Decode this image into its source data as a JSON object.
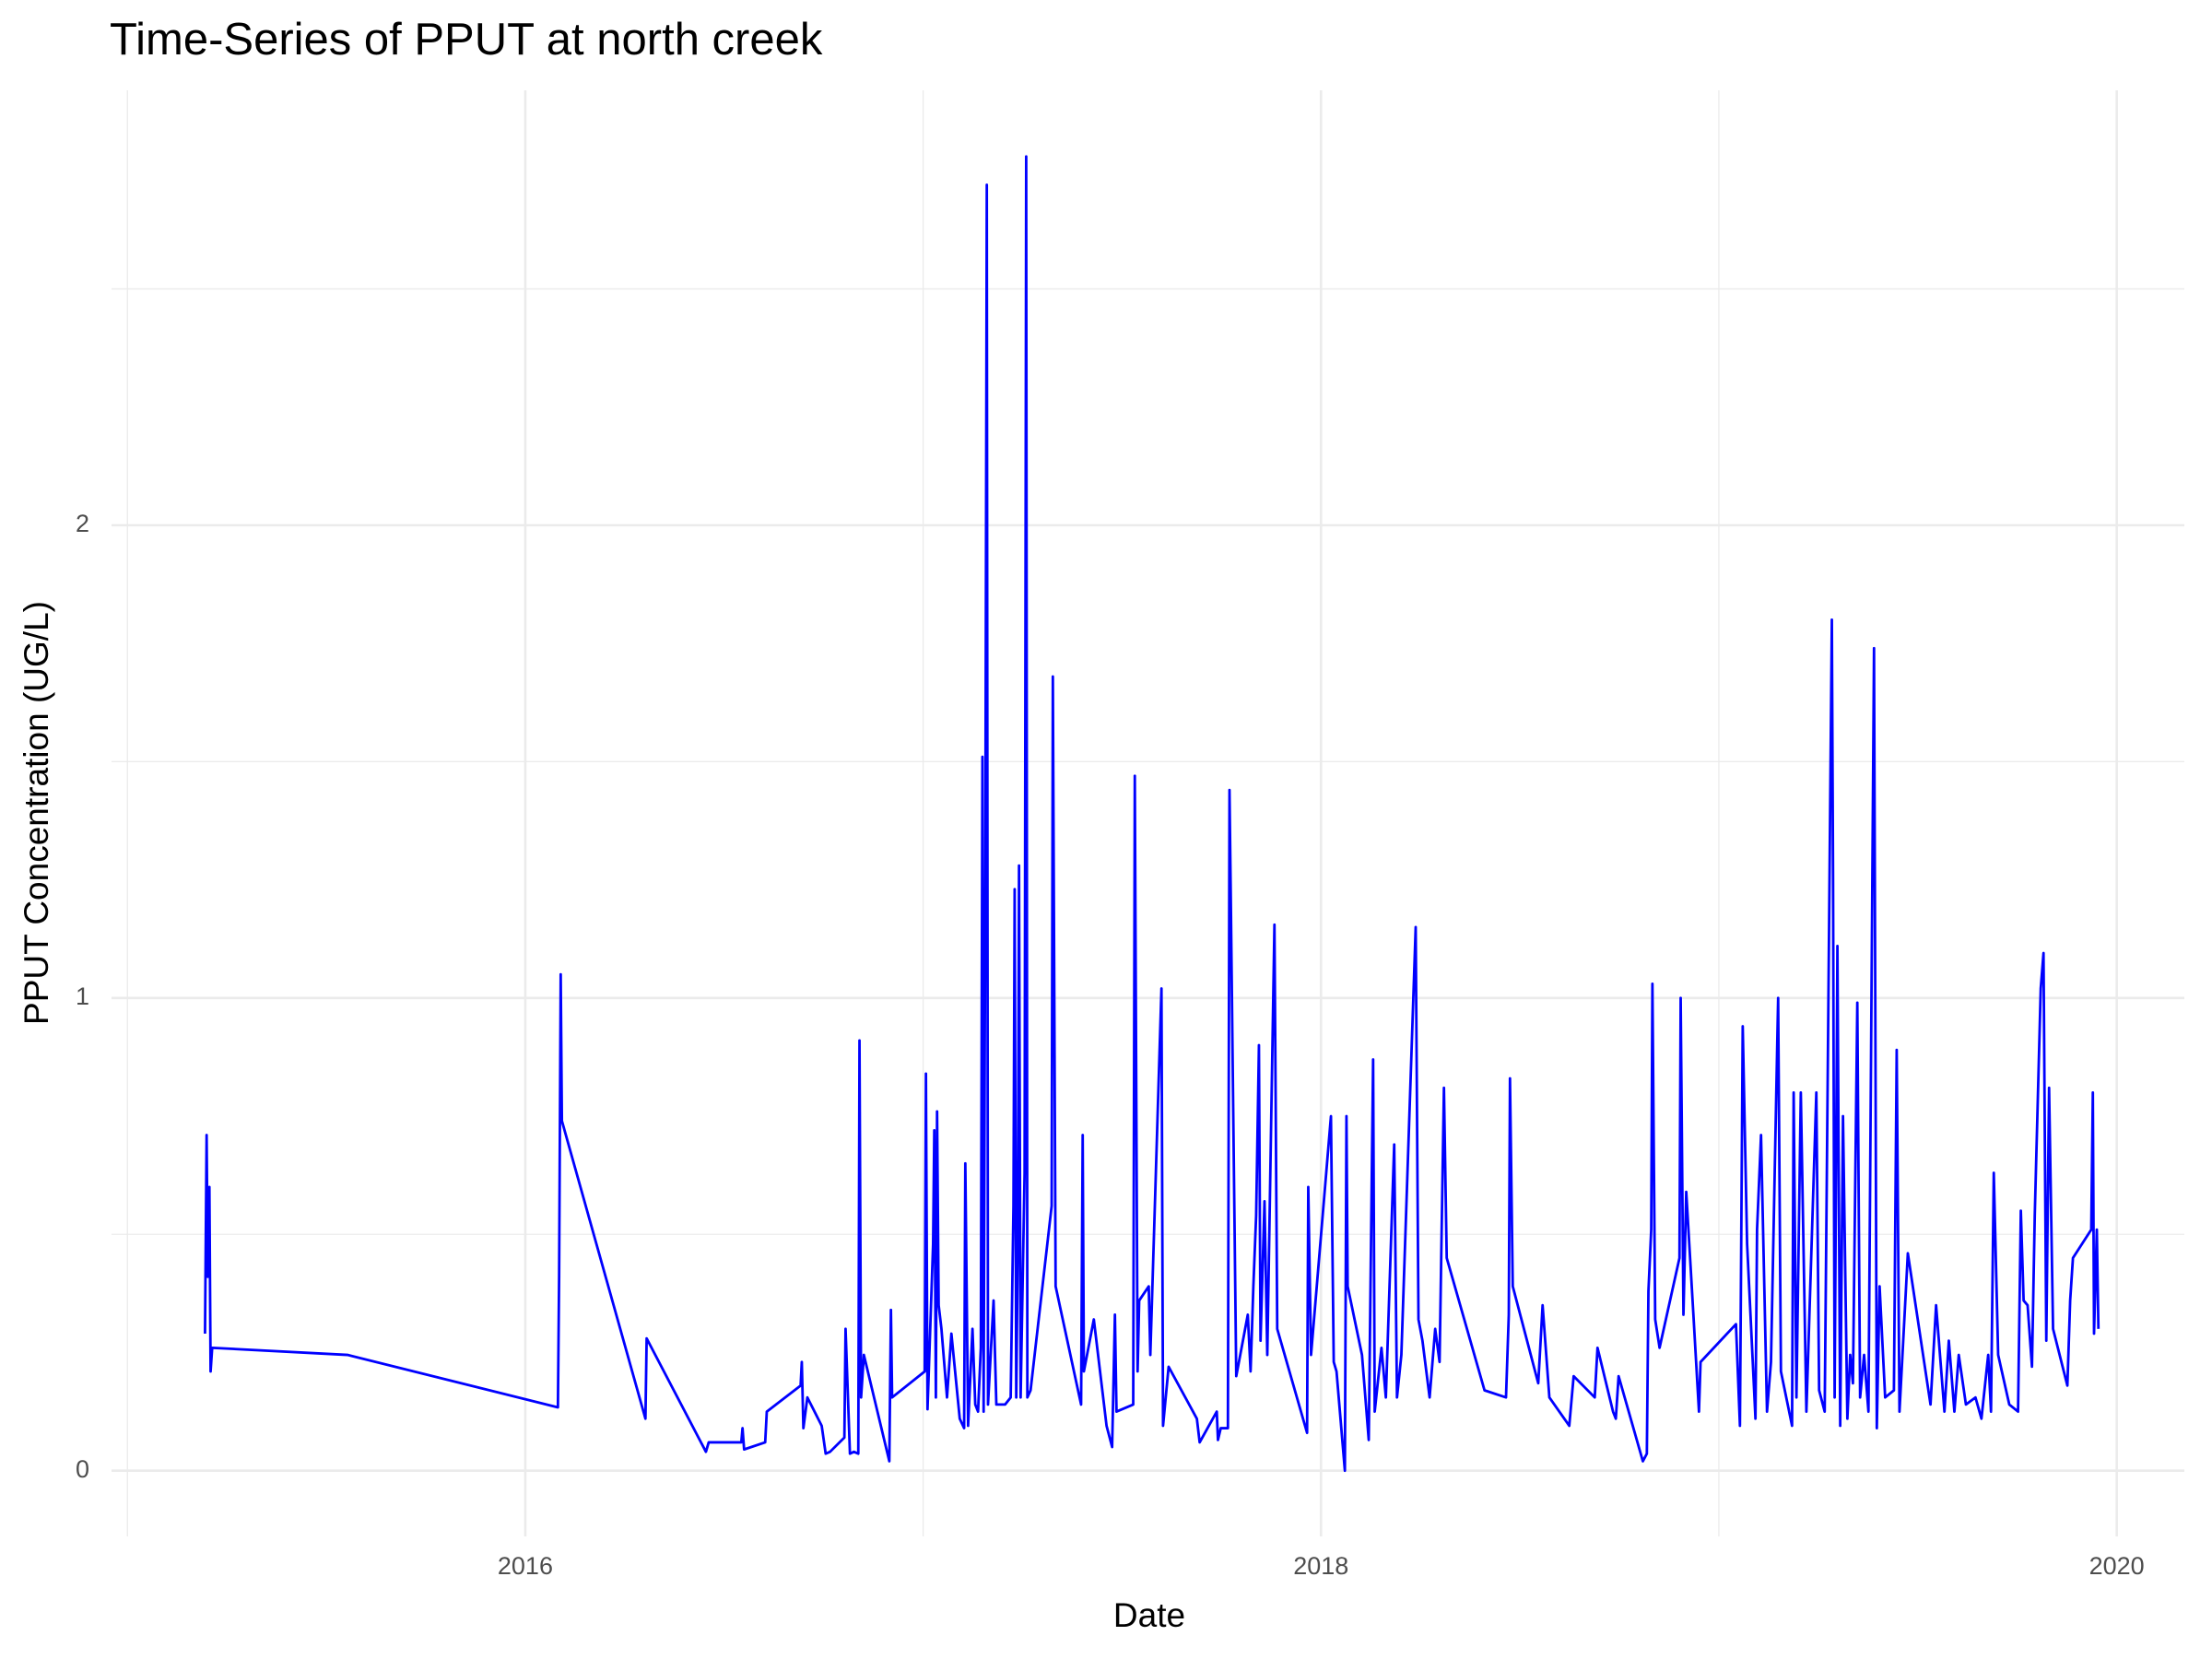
{
  "chart_data": {
    "type": "line",
    "title": "Time-Series of PPUT at north creek",
    "x_label": "Date",
    "y_label": "PPUT Concentration (UG/L)",
    "color": "#0000ff",
    "grid": true,
    "xlim": [
      2014.96,
      2020.17
    ],
    "ylim": [
      -0.139,
      2.92
    ],
    "xticks": [
      2016,
      2018,
      2020
    ],
    "yticks": [
      0,
      1,
      2
    ],
    "minor_xticks": [
      2015,
      2017,
      2019
    ],
    "minor_yticks": [
      0.5,
      1.5,
      2.5
    ],
    "x": [
      2015.195,
      2015.199,
      2015.202,
      2015.206,
      2015.209,
      2015.213,
      2015.553,
      2016.082,
      2016.085,
      2016.089,
      2016.092,
      2016.302,
      2016.305,
      2016.454,
      2016.461,
      2016.543,
      2016.546,
      2016.55,
      2016.603,
      2016.607,
      2016.692,
      2016.695,
      2016.699,
      2016.709,
      2016.73,
      2016.745,
      2016.755,
      2016.766,
      2016.802,
      2016.805,
      2016.816,
      2016.826,
      2016.837,
      2016.84,
      2016.844,
      2016.851,
      2016.915,
      2016.919,
      2016.922,
      2017.004,
      2017.007,
      2017.011,
      2017.025,
      2017.028,
      2017.032,
      2017.035,
      2017.039,
      2017.046,
      2017.06,
      2017.071,
      2017.092,
      2017.103,
      2017.106,
      2017.113,
      2017.124,
      2017.131,
      2017.138,
      2017.145,
      2017.149,
      2017.152,
      2017.156,
      2017.16,
      2017.163,
      2017.177,
      2017.184,
      2017.206,
      2017.22,
      2017.227,
      2017.23,
      2017.234,
      2017.238,
      2017.241,
      2017.245,
      2017.255,
      2017.259,
      2017.262,
      2017.27,
      2017.323,
      2017.326,
      2017.333,
      2017.397,
      2017.401,
      2017.404,
      2017.429,
      2017.461,
      2017.475,
      2017.482,
      2017.486,
      2017.528,
      2017.532,
      2017.539,
      2017.543,
      2017.567,
      2017.571,
      2017.599,
      2017.603,
      2017.617,
      2017.688,
      2017.695,
      2017.738,
      2017.741,
      2017.748,
      2017.766,
      2017.77,
      2017.773,
      2017.787,
      2017.816,
      2017.823,
      2017.83,
      2017.837,
      2017.844,
      2017.848,
      2017.858,
      2017.865,
      2017.883,
      2017.89,
      2017.965,
      2017.968,
      2017.975,
      2018.025,
      2018.032,
      2018.039,
      2018.06,
      2018.064,
      2018.067,
      2018.103,
      2018.12,
      2018.131,
      2018.135,
      2018.152,
      2018.163,
      2018.184,
      2018.191,
      2018.202,
      2018.238,
      2018.245,
      2018.255,
      2018.273,
      2018.287,
      2018.298,
      2018.309,
      2018.316,
      2018.411,
      2018.465,
      2018.472,
      2018.475,
      2018.482,
      2018.546,
      2018.557,
      2018.574,
      2018.624,
      2018.635,
      2018.688,
      2018.695,
      2018.734,
      2018.741,
      2018.748,
      2018.809,
      2018.819,
      2018.823,
      2018.83,
      2018.833,
      2018.84,
      2018.851,
      2018.901,
      2018.904,
      2018.911,
      2018.918,
      2018.936,
      2018.95,
      2018.954,
      2019.043,
      2019.053,
      2019.06,
      2019.071,
      2019.092,
      2019.096,
      2019.106,
      2019.121,
      2019.131,
      2019.149,
      2019.156,
      2019.184,
      2019.188,
      2019.195,
      2019.206,
      2019.22,
      2019.245,
      2019.252,
      2019.266,
      2019.284,
      2019.287,
      2019.291,
      2019.298,
      2019.305,
      2019.312,
      2019.323,
      2019.33,
      2019.337,
      2019.348,
      2019.355,
      2019.365,
      2019.376,
      2019.39,
      2019.397,
      2019.404,
      2019.418,
      2019.44,
      2019.447,
      2019.454,
      2019.475,
      2019.532,
      2019.546,
      2019.567,
      2019.578,
      2019.592,
      2019.603,
      2019.621,
      2019.645,
      2019.66,
      2019.677,
      2019.684,
      2019.691,
      2019.702,
      2019.73,
      2019.752,
      2019.759,
      2019.766,
      2019.776,
      2019.787,
      2019.794,
      2019.809,
      2019.816,
      2019.823,
      2019.83,
      2019.84,
      2019.876,
      2019.883,
      2019.89,
      2019.936,
      2019.94,
      2019.943,
      2019.95,
      2019.954
    ],
    "values": [
      0.29,
      0.71,
      0.41,
      0.6,
      0.21,
      0.26,
      0.245,
      0.134,
      0.41,
      1.05,
      0.74,
      0.11,
      0.28,
      0.04,
      0.06,
      0.06,
      0.09,
      0.045,
      0.06,
      0.125,
      0.18,
      0.23,
      0.09,
      0.155,
      0.12,
      0.095,
      0.036,
      0.04,
      0.07,
      0.3,
      0.036,
      0.04,
      0.036,
      0.91,
      0.155,
      0.245,
      0.02,
      0.34,
      0.155,
      0.21,
      0.84,
      0.13,
      0.48,
      0.72,
      0.155,
      0.76,
      0.35,
      0.3,
      0.155,
      0.29,
      0.11,
      0.09,
      0.65,
      0.095,
      0.3,
      0.14,
      0.125,
      0.26,
      1.51,
      0.125,
      1.19,
      2.72,
      0.14,
      0.36,
      0.14,
      0.14,
      0.155,
      0.56,
      1.23,
      0.155,
      0.48,
      1.28,
      0.155,
      0.63,
      2.78,
      0.155,
      0.17,
      0.56,
      1.68,
      0.39,
      0.14,
      0.71,
      0.21,
      0.32,
      0.095,
      0.05,
      0.33,
      0.125,
      0.14,
      1.47,
      0.21,
      0.36,
      0.39,
      0.245,
      1.02,
      0.095,
      0.22,
      0.11,
      0.06,
      0.125,
      0.065,
      0.09,
      0.09,
      1.44,
      1.23,
      0.2,
      0.33,
      0.21,
      0.39,
      0.54,
      0.9,
      0.275,
      0.57,
      0.245,
      1.155,
      0.3,
      0.08,
      0.6,
      0.245,
      0.75,
      0.23,
      0.21,
      0.0,
      0.75,
      0.39,
      0.245,
      0.065,
      0.87,
      0.125,
      0.26,
      0.155,
      0.69,
      0.155,
      0.245,
      1.15,
      0.32,
      0.275,
      0.155,
      0.3,
      0.23,
      0.81,
      0.45,
      0.17,
      0.155,
      0.33,
      0.83,
      0.39,
      0.185,
      0.35,
      0.155,
      0.095,
      0.2,
      0.155,
      0.26,
      0.125,
      0.11,
      0.2,
      0.02,
      0.036,
      0.38,
      0.51,
      1.03,
      0.32,
      0.26,
      0.45,
      1.0,
      0.33,
      0.59,
      0.33,
      0.125,
      0.23,
      0.31,
      0.095,
      0.94,
      0.48,
      0.11,
      0.51,
      0.71,
      0.125,
      0.23,
      1.0,
      0.21,
      0.095,
      0.8,
      0.155,
      0.8,
      0.125,
      0.8,
      0.17,
      0.125,
      1.8,
      1.26,
      0.155,
      1.11,
      0.095,
      0.75,
      0.11,
      0.245,
      0.185,
      0.99,
      0.155,
      0.245,
      0.125,
      1.74,
      0.09,
      0.39,
      0.155,
      0.17,
      0.89,
      0.125,
      0.46,
      0.14,
      0.35,
      0.125,
      0.275,
      0.125,
      0.245,
      0.14,
      0.155,
      0.11,
      0.245,
      0.125,
      0.63,
      0.245,
      0.14,
      0.125,
      0.55,
      0.36,
      0.35,
      0.22,
      0.54,
      1.02,
      1.095,
      0.275,
      0.81,
      0.3,
      0.18,
      0.36,
      0.45,
      0.51,
      0.8,
      0.29,
      0.51,
      0.3
    ]
  }
}
